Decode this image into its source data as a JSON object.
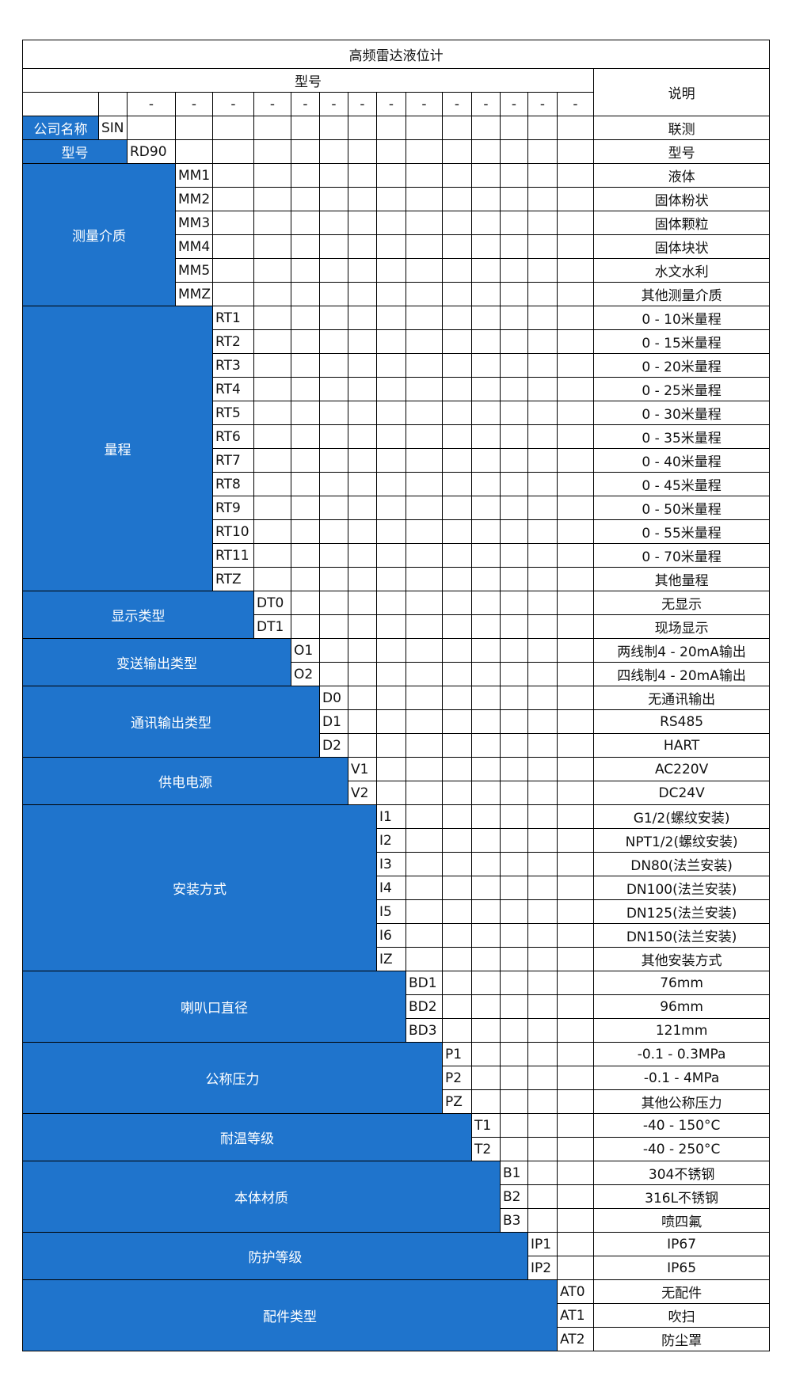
{
  "title": "高频雷达液位计",
  "header": {
    "model_label": "型号",
    "desc_label": "说明",
    "separator": "-"
  },
  "colors": {
    "label_background": "#1f74cc",
    "label_text": "#ffffff",
    "border": "#000000"
  },
  "groups": [
    {
      "label": "公司名称",
      "col": 1,
      "items": [
        {
          "code": "SIN",
          "desc": "联测"
        }
      ]
    },
    {
      "label": "型号",
      "col": 2,
      "items": [
        {
          "code": "RD90",
          "desc": "型号"
        }
      ]
    },
    {
      "label": "测量介质",
      "col": 3,
      "items": [
        {
          "code": "MM1",
          "desc": "液体"
        },
        {
          "code": "MM2",
          "desc": "固体粉状"
        },
        {
          "code": "MM3",
          "desc": "固体颗粒"
        },
        {
          "code": "MM4",
          "desc": "固体块状"
        },
        {
          "code": "MM5",
          "desc": "水文水利"
        },
        {
          "code": "MMZ",
          "desc": "其他测量介质"
        }
      ]
    },
    {
      "label": "量程",
      "col": 4,
      "items": [
        {
          "code": "RT1",
          "desc": "0 - 10米量程"
        },
        {
          "code": "RT2",
          "desc": "0 - 15米量程"
        },
        {
          "code": "RT3",
          "desc": "0 - 20米量程"
        },
        {
          "code": "RT4",
          "desc": "0 - 25米量程"
        },
        {
          "code": "RT5",
          "desc": "0 - 30米量程"
        },
        {
          "code": "RT6",
          "desc": "0 - 35米量程"
        },
        {
          "code": "RT7",
          "desc": "0 - 40米量程"
        },
        {
          "code": "RT8",
          "desc": "0 - 45米量程"
        },
        {
          "code": "RT9",
          "desc": "0 - 50米量程"
        },
        {
          "code": "RT10",
          "desc": "0 - 55米量程"
        },
        {
          "code": "RT11",
          "desc": "0 - 70米量程"
        },
        {
          "code": "RTZ",
          "desc": "其他量程"
        }
      ]
    },
    {
      "label": "显示类型",
      "col": 5,
      "items": [
        {
          "code": "DT0",
          "desc": "无显示"
        },
        {
          "code": "DT1",
          "desc": "现场显示"
        }
      ]
    },
    {
      "label": "变送输出类型",
      "col": 6,
      "items": [
        {
          "code": "O1",
          "desc": "两线制4 - 20mA输出"
        },
        {
          "code": "O2",
          "desc": "四线制4 - 20mA输出"
        }
      ]
    },
    {
      "label": "通讯输出类型",
      "col": 7,
      "items": [
        {
          "code": "D0",
          "desc": "无通讯输出"
        },
        {
          "code": "D1",
          "desc": "RS485"
        },
        {
          "code": "D2",
          "desc": "HART"
        }
      ]
    },
    {
      "label": "供电电源",
      "col": 8,
      "items": [
        {
          "code": "V1",
          "desc": "AC220V"
        },
        {
          "code": "V2",
          "desc": "DC24V"
        }
      ]
    },
    {
      "label": "安装方式",
      "col": 9,
      "items": [
        {
          "code": "I1",
          "desc": "G1/2(螺纹安装)"
        },
        {
          "code": "I2",
          "desc": "NPT1/2(螺纹安装)"
        },
        {
          "code": "I3",
          "desc": "DN80(法兰安装)"
        },
        {
          "code": "I4",
          "desc": "DN100(法兰安装)"
        },
        {
          "code": "I5",
          "desc": "DN125(法兰安装)"
        },
        {
          "code": "I6",
          "desc": "DN150(法兰安装)"
        },
        {
          "code": "IZ",
          "desc": "其他安装方式"
        }
      ]
    },
    {
      "label": "喇叭口直径",
      "col": 10,
      "items": [
        {
          "code": "BD1",
          "desc": "76mm"
        },
        {
          "code": "BD2",
          "desc": "96mm"
        },
        {
          "code": "BD3",
          "desc": "121mm"
        }
      ]
    },
    {
      "label": "公称压力",
      "col": 11,
      "items": [
        {
          "code": "P1",
          "desc": "-0.1 - 0.3MPa"
        },
        {
          "code": "P2",
          "desc": "-0.1 - 4MPa"
        },
        {
          "code": "PZ",
          "desc": "其他公称压力"
        }
      ]
    },
    {
      "label": "耐温等级",
      "col": 12,
      "items": [
        {
          "code": "T1",
          "desc": "-40 - 150°C"
        },
        {
          "code": "T2",
          "desc": "-40 - 250°C"
        }
      ]
    },
    {
      "label": "本体材质",
      "col": 13,
      "items": [
        {
          "code": "B1",
          "desc": "304不锈钢"
        },
        {
          "code": "B2",
          "desc": "316L不锈钢"
        },
        {
          "code": "B3",
          "desc": "喷四氟"
        }
      ]
    },
    {
      "label": "防护等级",
      "col": 14,
      "items": [
        {
          "code": "IP1",
          "desc": "IP67"
        },
        {
          "code": "IP2",
          "desc": "IP65"
        }
      ]
    },
    {
      "label": "配件类型",
      "col": 15,
      "items": [
        {
          "code": "AT0",
          "desc": "无配件"
        },
        {
          "code": "AT1",
          "desc": "吹扫"
        },
        {
          "code": "AT2",
          "desc": "防尘罩"
        }
      ]
    }
  ]
}
